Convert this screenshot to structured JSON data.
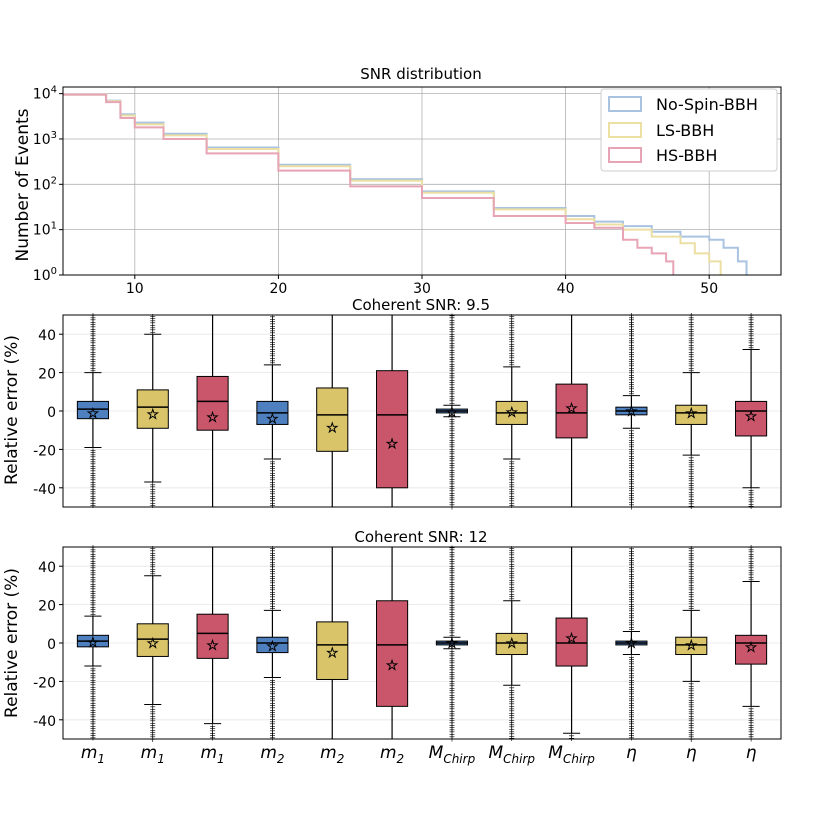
{
  "colors": {
    "no_spin": "#4e7fbf",
    "ls": "#d9c46a",
    "hs": "#c9566b",
    "hist_no_spin": "#a9c3e0",
    "hist_ls": "#ecdfa4",
    "hist_hs": "#e7a4b4"
  },
  "chart_data": [
    {
      "type": "line",
      "title": "SNR distribution",
      "ylabel": "Number of Events",
      "xlabel": "",
      "x_ticks": [
        10,
        20,
        30,
        40,
        50
      ],
      "y_ticks": [
        1,
        10,
        100,
        1000,
        10000
      ],
      "y_tick_labels": [
        "10^0",
        "10^1",
        "10^2",
        "10^3",
        "10^4"
      ],
      "xlim": [
        5,
        55
      ],
      "ylim": [
        1,
        14000
      ],
      "yscale": "log",
      "grid": true,
      "legend_position": "top-right",
      "series": [
        {
          "name": "No-Spin-BBH",
          "color_key": "hist_no_spin",
          "x": [
            5,
            7.5,
            8,
            9,
            10,
            12,
            15,
            20,
            25,
            30,
            35,
            40,
            42,
            44,
            46,
            48,
            50,
            51,
            52,
            52.6
          ],
          "y": [
            9500,
            9500,
            7000,
            3500,
            2300,
            1300,
            650,
            270,
            130,
            70,
            30,
            20,
            15,
            12,
            9,
            7,
            6,
            4,
            2,
            1
          ]
        },
        {
          "name": "LS-BBH",
          "color_key": "hist_ls",
          "x": [
            5,
            7.5,
            8,
            9,
            10,
            12,
            15,
            20,
            25,
            30,
            35,
            40,
            42,
            44,
            46,
            48,
            49,
            50,
            50.8
          ],
          "y": [
            9500,
            9500,
            6800,
            3300,
            2100,
            1200,
            600,
            250,
            120,
            65,
            28,
            17,
            13,
            10,
            7,
            5,
            3,
            2,
            1
          ]
        },
        {
          "name": "HS-BBH",
          "color_key": "hist_hs",
          "x": [
            5,
            7.5,
            8,
            9,
            10,
            12,
            15,
            20,
            25,
            30,
            35,
            40,
            42,
            44,
            45,
            46,
            47,
            47.5
          ],
          "y": [
            9500,
            9500,
            6500,
            2900,
            1800,
            1000,
            480,
            200,
            90,
            50,
            20,
            14,
            11,
            6,
            4,
            3,
            2,
            1
          ]
        }
      ]
    },
    {
      "type": "box",
      "title": "Coherent SNR: 9.5",
      "ylabel": "Relative error (%)",
      "ylim": [
        -50,
        50
      ],
      "y_ticks": [
        -40,
        -20,
        0,
        20,
        40
      ],
      "grid": true,
      "boxes": [
        {
          "group": "no_spin",
          "q1": -4,
          "median": 1,
          "q3": 5,
          "mean": -1,
          "whisker_low": -19,
          "whisker_high": 20
        },
        {
          "group": "ls",
          "q1": -9,
          "median": 2,
          "q3": 11,
          "mean": -1.5,
          "whisker_low": -37,
          "whisker_high": 40
        },
        {
          "group": "hs",
          "q1": -10,
          "median": 5,
          "q3": 18,
          "mean": -3,
          "whisker_low": -50,
          "whisker_high": 50
        },
        {
          "group": "no_spin",
          "q1": -7,
          "median": -1,
          "q3": 5,
          "mean": -4,
          "whisker_low": -25,
          "whisker_high": 24
        },
        {
          "group": "ls",
          "q1": -21,
          "median": -2,
          "q3": 12,
          "mean": -8.5,
          "whisker_low": -50,
          "whisker_high": 50
        },
        {
          "group": "hs",
          "q1": -40,
          "median": -2,
          "q3": 21,
          "mean": -17,
          "whisker_low": -50,
          "whisker_high": 50
        },
        {
          "group": "no_spin",
          "q1": -1,
          "median": 0,
          "q3": 1,
          "mean": -0.5,
          "whisker_low": -3,
          "whisker_high": 3
        },
        {
          "group": "ls",
          "q1": -7,
          "median": -1,
          "q3": 5,
          "mean": -0.5,
          "whisker_low": -25,
          "whisker_high": 23
        },
        {
          "group": "hs",
          "q1": -14,
          "median": -1,
          "q3": 14,
          "mean": 1.5,
          "whisker_low": -50,
          "whisker_high": 50
        },
        {
          "group": "no_spin",
          "q1": -2,
          "median": 0,
          "q3": 2,
          "mean": 0,
          "whisker_low": -9,
          "whisker_high": 8
        },
        {
          "group": "ls",
          "q1": -7,
          "median": -1,
          "q3": 3,
          "mean": -1,
          "whisker_low": -23,
          "whisker_high": 20
        },
        {
          "group": "hs",
          "q1": -13,
          "median": 0,
          "q3": 5,
          "mean": -2.5,
          "whisker_low": -40,
          "whisker_high": 32
        }
      ]
    },
    {
      "type": "box",
      "title": "Coherent SNR: 12",
      "ylabel": "Relative error (%)",
      "ylim": [
        -50,
        50
      ],
      "y_ticks": [
        -40,
        -20,
        0,
        20,
        40
      ],
      "grid": true,
      "categories": [
        "m1",
        "m1",
        "m1",
        "m2",
        "m2",
        "m2",
        "MChirp",
        "MChirp",
        "MChirp",
        "η",
        "η",
        "η"
      ],
      "boxes": [
        {
          "group": "no_spin",
          "q1": -2,
          "median": 1,
          "q3": 4,
          "mean": 0.5,
          "whisker_low": -12,
          "whisker_high": 14
        },
        {
          "group": "ls",
          "q1": -7,
          "median": 2,
          "q3": 10,
          "mean": 0,
          "whisker_low": -32,
          "whisker_high": 35
        },
        {
          "group": "hs",
          "q1": -8,
          "median": 5,
          "q3": 15,
          "mean": -1,
          "whisker_low": -42,
          "whisker_high": 50
        },
        {
          "group": "no_spin",
          "q1": -5,
          "median": 0,
          "q3": 3,
          "mean": -1.5,
          "whisker_low": -18,
          "whisker_high": 17
        },
        {
          "group": "ls",
          "q1": -19,
          "median": -1,
          "q3": 11,
          "mean": -5,
          "whisker_low": -50,
          "whisker_high": 50
        },
        {
          "group": "hs",
          "q1": -33,
          "median": -1,
          "q3": 22,
          "mean": -11.5,
          "whisker_low": -50,
          "whisker_high": 50
        },
        {
          "group": "no_spin",
          "q1": -1,
          "median": 0,
          "q3": 1,
          "mean": 0,
          "whisker_low": -3,
          "whisker_high": 3
        },
        {
          "group": "ls",
          "q1": -6,
          "median": 0,
          "q3": 5,
          "mean": 0,
          "whisker_low": -22,
          "whisker_high": 22
        },
        {
          "group": "hs",
          "q1": -12,
          "median": 0,
          "q3": 13,
          "mean": 2.5,
          "whisker_low": -47,
          "whisker_high": 50
        },
        {
          "group": "no_spin",
          "q1": -1,
          "median": 0,
          "q3": 1,
          "mean": 0,
          "whisker_low": -6,
          "whisker_high": 6
        },
        {
          "group": "ls",
          "q1": -6,
          "median": -1,
          "q3": 3,
          "mean": -1,
          "whisker_low": -20,
          "whisker_high": 17
        },
        {
          "group": "hs",
          "q1": -11,
          "median": 0,
          "q3": 4,
          "mean": -2,
          "whisker_low": -33,
          "whisker_high": 32
        }
      ]
    }
  ]
}
